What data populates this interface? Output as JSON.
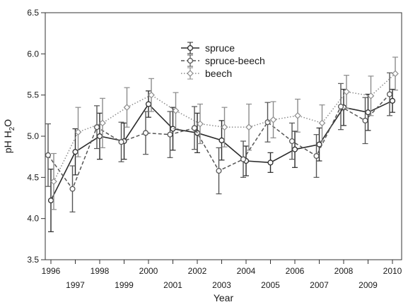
{
  "chart_data": {
    "type": "line",
    "xlabel": "Year",
    "ylabel": "pH H",
    "ylabel_sub": "2",
    "ylabel_tail": "O",
    "ylim": [
      3.5,
      6.5
    ],
    "yticks": [
      "3.5",
      "4.0",
      "4.5",
      "5.0",
      "5.5",
      "6.0",
      "6.5"
    ],
    "x": [
      1996,
      1997,
      1998,
      1999,
      2000,
      2001,
      2002,
      2003,
      2004,
      2005,
      2006,
      2007,
      2008,
      2009,
      2010
    ],
    "xtick_labels": [
      "1996",
      "1997",
      "1998",
      "1999",
      "2000",
      "2001",
      "2002",
      "2003",
      "2004",
      "2005",
      "2006",
      "2007",
      "2008",
      "2009",
      "2010"
    ],
    "legend_position": "top-center",
    "grid": false,
    "series": [
      {
        "name": "spruce",
        "style": "solid",
        "color": "#2b2b2b",
        "marker": "circle",
        "values": [
          4.22,
          4.81,
          5.0,
          4.94,
          5.39,
          5.09,
          5.04,
          4.95,
          4.7,
          4.68,
          4.84,
          4.9,
          5.35,
          5.29,
          5.43
        ],
        "errors": [
          0.38,
          0.28,
          0.28,
          0.22,
          0.16,
          0.26,
          0.24,
          0.24,
          0.18,
          0.12,
          0.22,
          0.2,
          0.22,
          0.22,
          0.14
        ]
      },
      {
        "name": "spruce-beech",
        "style": "dashed",
        "color": "#555555",
        "marker": "circle",
        "values": [
          4.77,
          4.36,
          5.11,
          4.93,
          5.04,
          5.02,
          5.1,
          4.58,
          4.72,
          5.17,
          4.94,
          4.76,
          5.36,
          5.19,
          5.51
        ],
        "errors": [
          0.38,
          0.28,
          0.26,
          0.24,
          0.26,
          0.28,
          0.26,
          0.28,
          0.22,
          0.24,
          0.22,
          0.26,
          0.28,
          0.28,
          0.26
        ]
      },
      {
        "name": "beech",
        "style": "dotted",
        "color": "#8c8c8c",
        "marker": "diamond",
        "values": [
          4.45,
          5.05,
          5.16,
          5.35,
          5.5,
          5.31,
          5.15,
          5.11,
          5.11,
          5.2,
          5.25,
          5.16,
          5.54,
          5.49,
          5.76
        ],
        "errors": [
          0.34,
          0.3,
          0.3,
          0.24,
          0.2,
          0.22,
          0.24,
          0.24,
          0.28,
          0.22,
          0.2,
          0.22,
          0.2,
          0.24,
          0.2
        ]
      }
    ]
  }
}
